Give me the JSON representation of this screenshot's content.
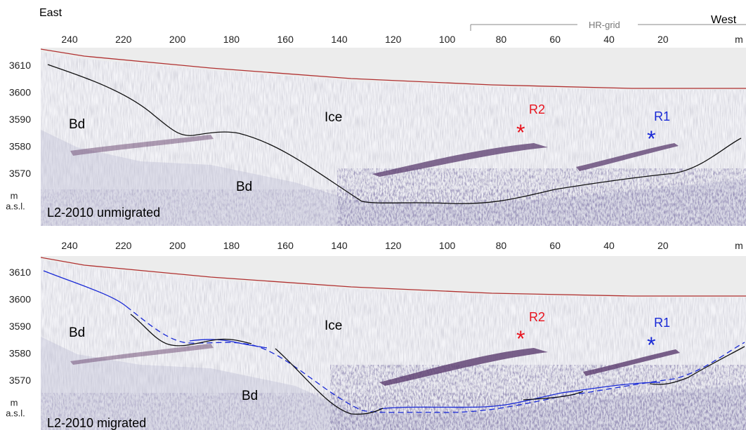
{
  "header": {
    "left_label": "East",
    "right_label": "West",
    "grid_label": "HR-grid"
  },
  "distance_ticks": [
    "240",
    "220",
    "200",
    "180",
    "160",
    "140",
    "120",
    "100",
    "80",
    "60",
    "40",
    "20"
  ],
  "distance_unit": "m",
  "elevation_ticks": [
    "3610",
    "3600",
    "3590",
    "3580",
    "3570"
  ],
  "elevation_unit_line1": "m",
  "elevation_unit_line2": "a.s.l.",
  "panels": [
    {
      "title": "L2-2010 unmigrated",
      "labels": {
        "ice": "Ice",
        "bedrock_left": "Bd",
        "bedrock_mid": "Bd",
        "reflector_2": "R2",
        "reflector_1": "R1",
        "star": "*"
      }
    },
    {
      "title": "L2-2010 migrated",
      "labels": {
        "ice": "Ice",
        "bedrock_left": "Bd",
        "bedrock_mid": "Bd",
        "reflector_2": "R2",
        "reflector_1": "R1",
        "star": "*"
      }
    }
  ],
  "colors": {
    "surface_line": "#b03030",
    "bed_line_unmigrated": "#111111",
    "bed_line_migrated": "#1a2ad6",
    "reflector_2": "#e8141e",
    "reflector_1": "#1a2ad6"
  }
}
